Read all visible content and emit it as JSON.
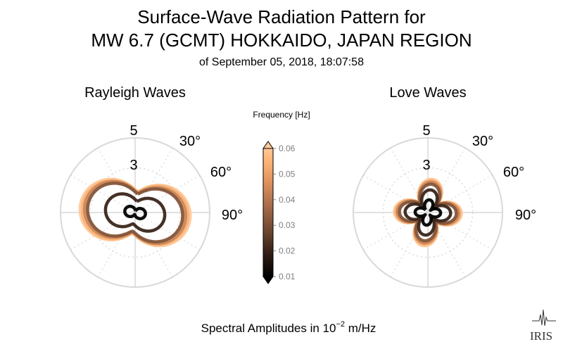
{
  "title": {
    "line1": "Surface-Wave Radiation Pattern for",
    "line2": "MW 6.7 (GCMT) HOKKAIDO, JAPAN REGION",
    "line3": "of September 05, 2018, 18:07:58"
  },
  "footer": {
    "label_prefix": "Spectral Amplitudes in 10",
    "label_exp": "−2",
    "label_suffix": " m/Hz"
  },
  "logo": {
    "text": "IRIS"
  },
  "colors": {
    "grid": "#d9d9d9",
    "tick_label": "#a6a6a6",
    "colormap": [
      "#000000",
      "#2e1d14",
      "#6b4630",
      "#a76c4a",
      "#e2955f",
      "#ffb87a",
      "#ffc89a"
    ]
  },
  "chart_data": [
    {
      "type": "polar",
      "title": "Rayleigh Waves",
      "r_ticks": [
        "3",
        "5"
      ],
      "angle_ticks": [
        "30°",
        "60°",
        "90°"
      ],
      "series_note": "one curve per frequency; color from colorbar",
      "series": [
        {
          "frequency": 0.01,
          "a": 0.7,
          "b": 0.25,
          "rot": 12
        },
        {
          "frequency": 0.02,
          "a": 2.0,
          "b": 1.4,
          "rot": 10
        },
        {
          "frequency": 0.03,
          "a": 3.2,
          "b": 2.3,
          "rot": 8
        },
        {
          "frequency": 0.04,
          "a": 3.4,
          "b": 2.4,
          "rot": 8
        },
        {
          "frequency": 0.05,
          "a": 3.55,
          "b": 2.5,
          "rot": 7
        },
        {
          "frequency": 0.06,
          "a": 3.7,
          "b": 2.55,
          "rot": 7
        }
      ]
    },
    {
      "type": "polar",
      "title": "Love Waves",
      "r_ticks": [
        "3",
        "5"
      ],
      "angle_ticks": [
        "30°",
        "60°",
        "90°"
      ],
      "series_note": "one curve per frequency; color from colorbar",
      "series": [
        {
          "frequency": 0.01,
          "a": 0.9,
          "b": 0.45,
          "rot": -40
        },
        {
          "frequency": 0.02,
          "a": 1.6,
          "b": 1.0,
          "rot": -40
        },
        {
          "frequency": 0.03,
          "a": 2.0,
          "b": 1.35,
          "rot": -40
        },
        {
          "frequency": 0.04,
          "a": 2.15,
          "b": 1.45,
          "rot": -40
        },
        {
          "frequency": 0.05,
          "a": 2.25,
          "b": 1.5,
          "rot": -40
        },
        {
          "frequency": 0.06,
          "a": 2.35,
          "b": 1.55,
          "rot": -40
        }
      ]
    },
    {
      "type": "colorbar",
      "title": "Frequency [Hz]",
      "min": 0.01,
      "max": 0.06,
      "ticks": [
        "0.06",
        "0.05",
        "0.04",
        "0.03",
        "0.02",
        "0.01"
      ]
    }
  ]
}
